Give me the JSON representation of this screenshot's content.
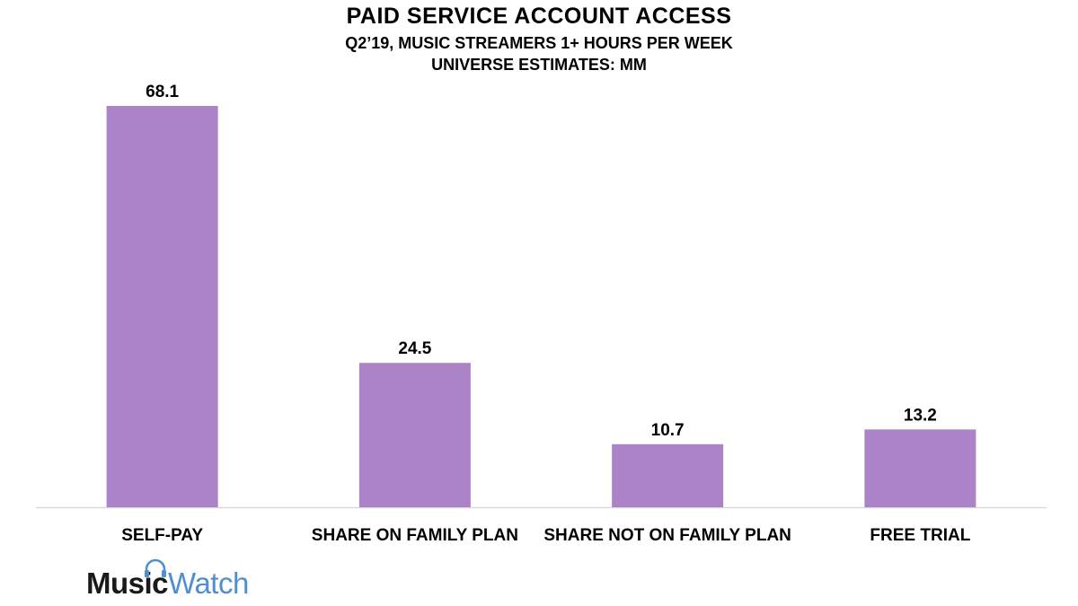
{
  "colors": {
    "bar": "#ab83c6",
    "axis": "#d9d9d9",
    "logo_music": "#1a1a1a",
    "logo_watch": "#4f8fd1"
  },
  "logo": {
    "part1": "Music",
    "part2": "Watch",
    "icon": "headphones-icon"
  },
  "chart_data": {
    "type": "bar",
    "title": "PAID SERVICE ACCOUNT ACCESS",
    "subtitle": [
      "Q2’19, MUSIC STREAMERS 1+ HOURS PER WEEK",
      "UNIVERSE ESTIMATES: MM"
    ],
    "categories": [
      "SELF-PAY",
      "SHARE ON FAMILY PLAN",
      "SHARE NOT ON FAMILY PLAN",
      "FREE TRIAL"
    ],
    "values": [
      68.1,
      24.5,
      10.7,
      13.2
    ],
    "xlabel": "",
    "ylabel": "",
    "ylim": [
      0,
      68.1
    ],
    "grid": false,
    "legend": "none",
    "data_labels": true
  }
}
